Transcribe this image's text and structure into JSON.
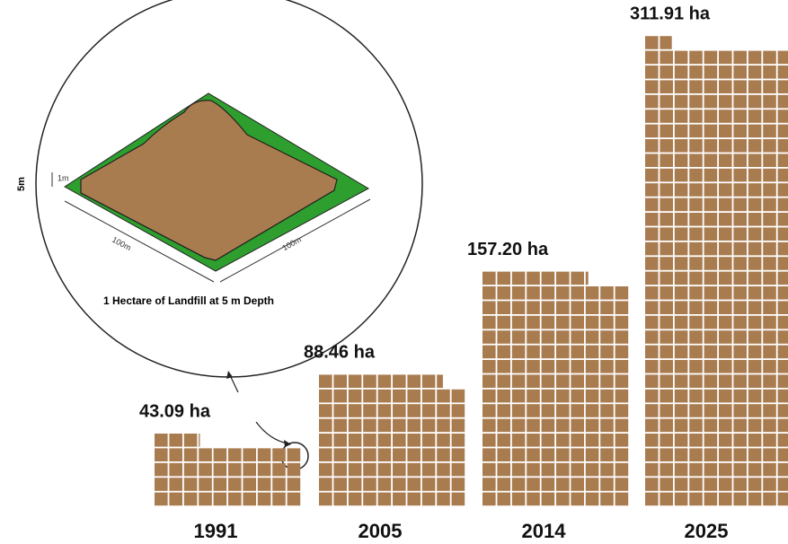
{
  "chart_data": {
    "type": "unit",
    "categories": [
      "1991",
      "2005",
      "2014",
      "2025"
    ],
    "values": [
      43.09,
      88.46,
      157.2,
      311.91
    ],
    "value_labels": [
      "43.09 ha",
      "88.46 ha",
      "157.20 ha",
      "311.91 ha"
    ],
    "color": "#a97c50",
    "inset": {
      "caption": "1 Hectare of Landfill at 5 m Depth",
      "depth_label": "5m",
      "height_label": "1m",
      "side_a": "100m",
      "side_b": "100m"
    }
  }
}
